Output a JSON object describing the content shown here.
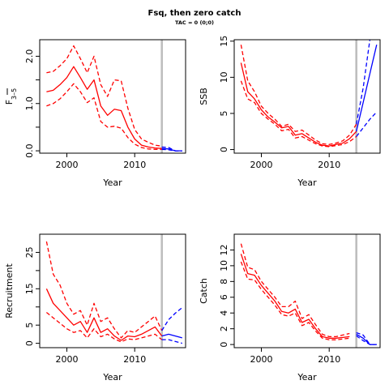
{
  "title": "Fsq, then zero catch",
  "subtitle": "TAC = 0 (0;0)",
  "colors": {
    "history": "#ff0000",
    "projection": "#0000ff",
    "ref_line": "#bebebe"
  },
  "chart_data": [
    {
      "type": "line",
      "panel": "top-left",
      "xlabel": "Year",
      "ylabel": "F",
      "ylabel_sub": "3–5",
      "xlim": [
        1996,
        2017.5
      ],
      "ylim": [
        -0.05,
        2.35
      ],
      "xticks": [
        2000,
        2010
      ],
      "xtick_labels": [
        "2000",
        "2010"
      ],
      "yticks": [
        0,
        0.5,
        1,
        1.5,
        2
      ],
      "ytick_labels": [
        "0.0",
        "",
        "1.0",
        "",
        "2.0"
      ],
      "vline": 2014,
      "series": [
        {
          "role": "history-median",
          "dash": false,
          "color": "#ff0000",
          "x": [
            1997,
            1998,
            1999,
            2000,
            2001,
            2002,
            2003,
            2004,
            2005,
            2006,
            2007,
            2008,
            2009,
            2010,
            2011,
            2012,
            2013,
            2014
          ],
          "y": [
            1.25,
            1.28,
            1.4,
            1.55,
            1.78,
            1.55,
            1.3,
            1.5,
            0.95,
            0.75,
            0.88,
            0.85,
            0.5,
            0.25,
            0.12,
            0.08,
            0.06,
            0.05
          ]
        },
        {
          "role": "history-upper",
          "dash": true,
          "color": "#ff0000",
          "x": [
            1997,
            1998,
            1999,
            2000,
            2001,
            2002,
            2003,
            2004,
            2005,
            2006,
            2007,
            2008,
            2009,
            2010,
            2011,
            2012,
            2013,
            2014
          ],
          "y": [
            1.65,
            1.68,
            1.8,
            1.95,
            2.22,
            1.95,
            1.65,
            2.0,
            1.4,
            1.15,
            1.5,
            1.48,
            0.9,
            0.45,
            0.25,
            0.18,
            0.12,
            0.1
          ]
        },
        {
          "role": "history-lower",
          "dash": true,
          "color": "#ff0000",
          "x": [
            1997,
            1998,
            1999,
            2000,
            2001,
            2002,
            2003,
            2004,
            2005,
            2006,
            2007,
            2008,
            2009,
            2010,
            2011,
            2012,
            2013,
            2014
          ],
          "y": [
            0.95,
            1.0,
            1.1,
            1.25,
            1.42,
            1.25,
            1.02,
            1.12,
            0.62,
            0.5,
            0.52,
            0.48,
            0.28,
            0.14,
            0.07,
            0.04,
            0.03,
            0.03
          ]
        },
        {
          "role": "projection-median",
          "dash": false,
          "color": "#0000ff",
          "x": [
            2014,
            2015,
            2016,
            2017
          ],
          "y": [
            0.05,
            0.04,
            0.0,
            0.0
          ]
        },
        {
          "role": "projection-upper",
          "dash": true,
          "color": "#0000ff",
          "x": [
            2014,
            2015,
            2016,
            2017
          ],
          "y": [
            0.08,
            0.07,
            0.0,
            0.0
          ]
        },
        {
          "role": "projection-lower",
          "dash": true,
          "color": "#0000ff",
          "x": [
            2014,
            2015,
            2016,
            2017
          ],
          "y": [
            0.03,
            0.02,
            0.0,
            0.0
          ]
        }
      ]
    },
    {
      "type": "line",
      "panel": "top-right",
      "xlabel": "Year",
      "ylabel": "SSB",
      "xlim": [
        1996,
        2017.5
      ],
      "ylim": [
        -0.5,
        15.2
      ],
      "xticks": [
        2000,
        2010
      ],
      "xtick_labels": [
        "2000",
        "2010"
      ],
      "yticks": [
        0,
        5,
        10,
        15
      ],
      "ytick_labels": [
        "0",
        "5",
        "10",
        "15"
      ],
      "vline": 2014,
      "series": [
        {
          "role": "history-median",
          "dash": false,
          "color": "#ff0000",
          "x": [
            1997,
            1998,
            1999,
            2000,
            2001,
            2002,
            2003,
            2004,
            2005,
            2006,
            2007,
            2008,
            2009,
            2010,
            2011,
            2012,
            2013,
            2014
          ],
          "y": [
            12,
            8,
            7,
            5.5,
            4.5,
            3.8,
            3,
            3.2,
            2,
            2.2,
            1.6,
            1,
            0.6,
            0.5,
            0.7,
            0.9,
            1.5,
            2.5
          ]
        },
        {
          "role": "history-upper",
          "dash": true,
          "color": "#ff0000",
          "x": [
            1997,
            1998,
            1999,
            2000,
            2001,
            2002,
            2003,
            2004,
            2005,
            2006,
            2007,
            2008,
            2009,
            2010,
            2011,
            2012,
            2013,
            2014
          ],
          "y": [
            14.5,
            9.5,
            8,
            6,
            5,
            4.2,
            3.2,
            3.5,
            2.5,
            2.7,
            2,
            1.3,
            0.8,
            0.7,
            0.9,
            1.2,
            2,
            3.5
          ]
        },
        {
          "role": "history-lower",
          "dash": true,
          "color": "#ff0000",
          "x": [
            1997,
            1998,
            1999,
            2000,
            2001,
            2002,
            2003,
            2004,
            2005,
            2006,
            2007,
            2008,
            2009,
            2010,
            2011,
            2012,
            2013,
            2014
          ],
          "y": [
            9.5,
            7,
            6.5,
            5,
            4.2,
            3.5,
            2.6,
            2.8,
            1.6,
            1.8,
            1.3,
            0.8,
            0.5,
            0.4,
            0.55,
            0.7,
            1.1,
            1.8
          ]
        },
        {
          "role": "projection-median",
          "dash": false,
          "color": "#0000ff",
          "x": [
            2014,
            2015,
            2016,
            2017
          ],
          "y": [
            2.5,
            6.5,
            10.5,
            14.5
          ]
        },
        {
          "role": "projection-upper",
          "dash": true,
          "color": "#0000ff",
          "x": [
            2014,
            2015,
            2016
          ],
          "y": [
            3.5,
            8.5,
            15.2
          ]
        },
        {
          "role": "projection-lower",
          "dash": true,
          "color": "#0000ff",
          "x": [
            2014,
            2015,
            2016,
            2017
          ],
          "y": [
            1.8,
            3,
            4.2,
            5.2
          ]
        }
      ]
    },
    {
      "type": "line",
      "panel": "bottom-left",
      "xlabel": "Year",
      "ylabel": "Recruitment",
      "xlim": [
        1996,
        2017.5
      ],
      "ylim": [
        -1.2,
        30
      ],
      "xticks": [
        2000,
        2010
      ],
      "xtick_labels": [
        "2000",
        "2010"
      ],
      "yticks": [
        0,
        5,
        10,
        15,
        20,
        25
      ],
      "ytick_labels": [
        "0",
        "5",
        "",
        "15",
        "",
        "25"
      ],
      "vline": 2014,
      "series": [
        {
          "role": "history-median",
          "dash": false,
          "color": "#ff0000",
          "x": [
            1997,
            1998,
            1999,
            2000,
            2001,
            2002,
            2003,
            2004,
            2005,
            2006,
            2007,
            2008,
            2009,
            2010,
            2011,
            2012,
            2013,
            2014
          ],
          "y": [
            15,
            11,
            9,
            7,
            5,
            6,
            3,
            7,
            3,
            4,
            2,
            0.8,
            2,
            1.8,
            2.5,
            3.5,
            4.5,
            2
          ]
        },
        {
          "role": "history-upper",
          "dash": true,
          "color": "#ff0000",
          "x": [
            1997,
            1998,
            1999,
            2000,
            2001,
            2002,
            2003,
            2004,
            2005,
            2006,
            2007,
            2008,
            2009,
            2010,
            2011,
            2012,
            2013,
            2014
          ],
          "y": [
            28,
            19,
            16,
            11,
            8,
            9,
            5,
            11,
            6,
            7,
            4,
            1.5,
            3.5,
            3,
            4.5,
            6,
            7.5,
            3.5
          ]
        },
        {
          "role": "history-lower",
          "dash": true,
          "color": "#ff0000",
          "x": [
            1997,
            1998,
            1999,
            2000,
            2001,
            2002,
            2003,
            2004,
            2005,
            2006,
            2007,
            2008,
            2009,
            2010,
            2011,
            2012,
            2013,
            2014
          ],
          "y": [
            8.5,
            7,
            5.5,
            4,
            3,
            3.5,
            1.5,
            4,
            1.8,
            2.5,
            1.2,
            0.4,
            1.2,
            1,
            1.5,
            2,
            2.5,
            1
          ]
        },
        {
          "role": "projection-median",
          "dash": false,
          "color": "#0000ff",
          "x": [
            2014,
            2015,
            2016,
            2017
          ],
          "y": [
            2,
            2.5,
            2,
            1.5
          ]
        },
        {
          "role": "projection-upper",
          "dash": true,
          "color": "#0000ff",
          "x": [
            2014,
            2015,
            2016,
            2017
          ],
          "y": [
            3.5,
            6.5,
            8.3,
            9.8
          ]
        },
        {
          "role": "projection-lower",
          "dash": true,
          "color": "#0000ff",
          "x": [
            2014,
            2015,
            2016,
            2017
          ],
          "y": [
            1,
            1,
            0.5,
            0
          ]
        }
      ]
    },
    {
      "type": "line",
      "panel": "bottom-right",
      "xlabel": "Year",
      "ylabel": "Catch",
      "xlim": [
        1996,
        2017.5
      ],
      "ylim": [
        -0.4,
        14
      ],
      "xticks": [
        2000,
        2010
      ],
      "xtick_labels": [
        "2000",
        "2010"
      ],
      "yticks": [
        0,
        2,
        4,
        6,
        8,
        10,
        12
      ],
      "ytick_labels": [
        "0",
        "2",
        "4",
        "6",
        "8",
        "10",
        "12"
      ],
      "vline": 2014,
      "series": [
        {
          "role": "history-median",
          "dash": false,
          "color": "#ff0000",
          "x": [
            1997,
            1998,
            1999,
            2000,
            2001,
            2002,
            2003,
            2004,
            2005,
            2006,
            2007,
            2008,
            2009,
            2010,
            2011,
            2012,
            2013
          ],
          "y": [
            11.5,
            9,
            8.8,
            7.5,
            6.5,
            5.5,
            4.2,
            4,
            4.5,
            2.8,
            3.2,
            2,
            1,
            0.8,
            0.8,
            0.9,
            1
          ]
        },
        {
          "role": "history-upper",
          "dash": true,
          "color": "#ff0000",
          "x": [
            1997,
            1998,
            1999,
            2000,
            2001,
            2002,
            2003,
            2004,
            2005,
            2006,
            2007,
            2008,
            2009,
            2010,
            2011,
            2012,
            2013
          ],
          "y": [
            12.8,
            9.8,
            9.5,
            8,
            7,
            6,
            4.8,
            4.8,
            5.5,
            3.3,
            3.8,
            2.5,
            1.3,
            1,
            1,
            1.2,
            1.4
          ]
        },
        {
          "role": "history-lower",
          "dash": true,
          "color": "#ff0000",
          "x": [
            1997,
            1998,
            1999,
            2000,
            2001,
            2002,
            2003,
            2004,
            2005,
            2006,
            2007,
            2008,
            2009,
            2010,
            2011,
            2012,
            2013
          ],
          "y": [
            10.5,
            8.3,
            8.2,
            7,
            6,
            5,
            3.8,
            3.6,
            4,
            2.4,
            2.8,
            1.7,
            0.8,
            0.6,
            0.6,
            0.7,
            0.8
          ]
        },
        {
          "role": "projection-median",
          "dash": false,
          "color": "#0000ff",
          "x": [
            2014,
            2015,
            2016,
            2017
          ],
          "y": [
            1.3,
            0.8,
            0,
            0
          ]
        },
        {
          "role": "projection-upper",
          "dash": true,
          "color": "#0000ff",
          "x": [
            2014,
            2015,
            2016,
            2017
          ],
          "y": [
            1.5,
            1.2,
            0,
            0
          ]
        },
        {
          "role": "projection-lower",
          "dash": true,
          "color": "#0000ff",
          "x": [
            2014,
            2015,
            2016,
            2017
          ],
          "y": [
            1.1,
            0.5,
            0,
            0
          ]
        }
      ]
    }
  ]
}
